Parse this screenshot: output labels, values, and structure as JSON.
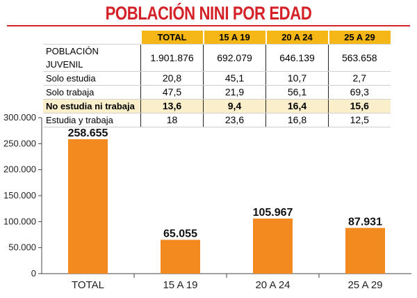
{
  "colors": {
    "title": "#d42027",
    "header_bg": "#f5b617",
    "highlight_bg": "#fbeecb",
    "bar": "#f28a1f",
    "axis": "#444444"
  },
  "table": {
    "columns": [
      "TOTAL",
      "15 A 19",
      "20 A 24",
      "25 A 29"
    ],
    "rows": [
      {
        "label": "POBLACIÓN JUVENIL",
        "values": [
          "1.901.876",
          "692.079",
          "646.139",
          "563.658"
        ],
        "highlight": false
      },
      {
        "label": "Solo estudia",
        "values": [
          "20,8",
          "45,1",
          "10,7",
          "2,7"
        ],
        "highlight": false
      },
      {
        "label": "Solo trabaja",
        "values": [
          "47,5",
          "21,9",
          "56,1",
          "69,3"
        ],
        "highlight": false
      },
      {
        "label": "No estudia ni trabaja",
        "values": [
          "13,6",
          "9,4",
          "16,4",
          "15,6"
        ],
        "highlight": true
      },
      {
        "label": "Estudia y trabaja",
        "values": [
          "18",
          "23,6",
          "16,8",
          "12,5"
        ],
        "highlight": false
      }
    ]
  },
  "chart_data": {
    "type": "bar",
    "title": "POBLACIÓN NINI POR EDAD",
    "categories": [
      "TOTAL",
      "15 A 19",
      "20 A 24",
      "25 A 29"
    ],
    "values": [
      258655,
      65055,
      105967,
      87931
    ],
    "value_labels": [
      "258.655",
      "65.055",
      "105.967",
      "87.931"
    ],
    "ylim": [
      0,
      300000
    ],
    "yticks": [
      0,
      50000,
      100000,
      150000,
      200000,
      250000,
      300000
    ],
    "ytick_labels": [
      "0",
      "50.000",
      "100.000",
      "150.000",
      "200.000",
      "250.000",
      "300.000"
    ],
    "xlabel": "",
    "ylabel": "",
    "grid": false,
    "legend": "none"
  }
}
